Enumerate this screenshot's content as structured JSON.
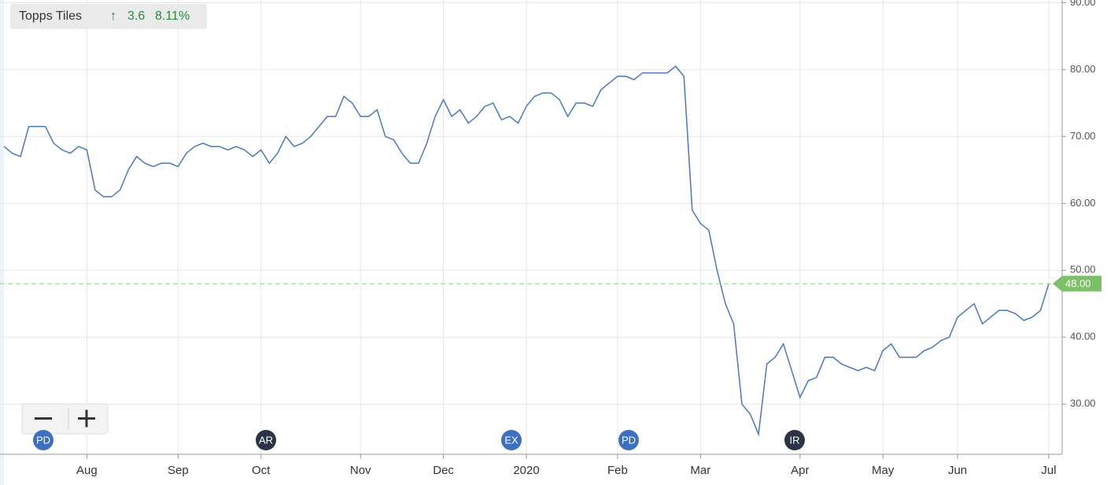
{
  "chart_data": {
    "type": "line",
    "change": "3.6",
    "change_percent": "8.11%",
    "categories": [
      null,
      null,
      null,
      null,
      null,
      null,
      null,
      null,
      null,
      null,
      "Aug",
      null,
      null,
      null,
      null,
      null,
      null,
      null,
      null,
      null,
      null,
      "Sep",
      null,
      null,
      null,
      null,
      null,
      null,
      null,
      null,
      null,
      "Oct",
      null,
      null,
      null,
      null,
      null,
      null,
      null,
      null,
      null,
      null,
      null,
      "Nov",
      null,
      null,
      null,
      null,
      null,
      null,
      null,
      null,
      null,
      "Dec",
      null,
      null,
      null,
      null,
      null,
      null,
      null,
      null,
      null,
      "2020",
      null,
      null,
      null,
      null,
      null,
      null,
      null,
      null,
      null,
      null,
      "Feb",
      null,
      null,
      null,
      null,
      null,
      null,
      null,
      null,
      null,
      "Mar",
      null,
      null,
      null,
      null,
      null,
      null,
      null,
      null,
      null,
      null,
      null,
      "Apr",
      null,
      null,
      null,
      null,
      null,
      null,
      null,
      null,
      null,
      "May",
      null,
      null,
      null,
      null,
      null,
      null,
      null,
      null,
      "Jun",
      null,
      null,
      null,
      null,
      null,
      null,
      null,
      null,
      null,
      null,
      "Jul"
    ],
    "series": [
      {
        "name": "Topps Tiles",
        "color": "#4a78b8",
        "values": [
          68.5,
          67.5,
          67,
          71.5,
          71.5,
          71.5,
          69,
          68,
          67.5,
          68.5,
          68,
          62,
          61,
          61,
          62,
          65,
          67,
          66,
          65.5,
          66,
          66,
          65.5,
          67.5,
          68.5,
          69,
          68.5,
          68.5,
          68,
          68.5,
          68,
          67,
          68,
          66,
          67.5,
          70,
          68.5,
          69,
          70,
          71.5,
          73,
          73,
          76,
          75,
          73,
          73,
          74,
          70,
          69.5,
          67.5,
          66,
          66,
          69,
          73,
          75.5,
          73,
          74,
          72,
          73,
          74.5,
          75,
          72.5,
          73,
          72,
          74.5,
          76,
          76.5,
          76.5,
          75.5,
          73,
          75,
          75,
          74.5,
          77,
          78,
          79,
          79,
          78.5,
          79.5,
          79.5,
          79.5,
          79.5,
          80.5,
          79,
          59,
          57,
          56,
          50,
          45,
          42,
          30,
          28.5,
          25.5,
          36,
          37,
          39,
          35,
          31,
          33.5,
          34,
          37,
          37,
          36,
          35.5,
          35,
          35.5,
          35,
          38,
          39,
          37,
          37,
          37,
          38,
          38.5,
          39.5,
          40,
          43,
          44,
          45,
          42,
          43,
          44,
          44,
          43.5,
          42.5,
          43,
          44,
          48
        ]
      }
    ],
    "ylim": [
      22.5,
      90.4
    ],
    "yticks": [
      {
        "value": 30,
        "label": "30.00"
      },
      {
        "value": 40,
        "label": "40.00"
      },
      {
        "value": 50,
        "label": "50.00"
      },
      {
        "value": 60,
        "label": "60.00"
      },
      {
        "value": 70,
        "label": "70.00"
      },
      {
        "value": 80,
        "label": "80.00"
      },
      {
        "value": 90,
        "label": "90.00"
      }
    ],
    "last_price": {
      "value": 48,
      "label": "48.00"
    },
    "markers": [
      "PD",
      "AR",
      "EX",
      "PD",
      "IR"
    ],
    "grid": true
  }
}
